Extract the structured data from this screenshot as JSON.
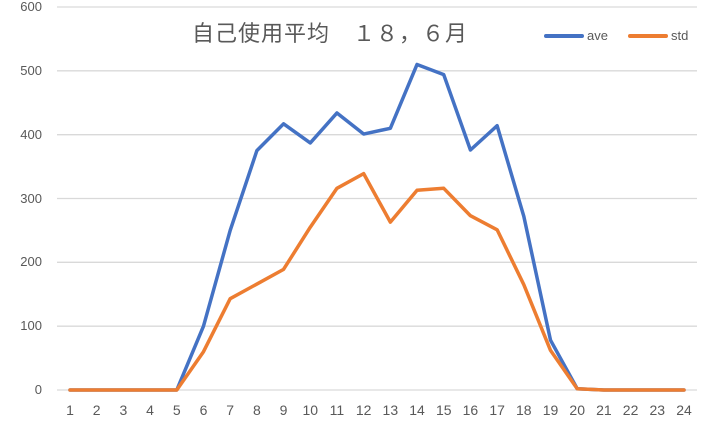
{
  "chart_data": {
    "type": "line",
    "title": "自己使用平均　１８，６月",
    "xlabel": "",
    "ylabel": "",
    "ylim": [
      0,
      600
    ],
    "yticks": [
      0,
      100,
      200,
      300,
      400,
      500,
      600
    ],
    "grid": true,
    "legend_position": "top-right",
    "categories": [
      1,
      2,
      3,
      4,
      5,
      6,
      7,
      8,
      9,
      10,
      11,
      12,
      13,
      14,
      15,
      16,
      17,
      18,
      19,
      20,
      21,
      22,
      23,
      24
    ],
    "series": [
      {
        "name": "ave",
        "color": "#4472C4",
        "values": [
          0,
          0,
          0,
          0,
          0,
          100,
          250,
          375,
          417,
          387,
          434,
          401,
          410,
          510,
          494,
          376,
          414,
          272,
          78,
          2,
          0,
          0,
          0,
          0
        ]
      },
      {
        "name": "std",
        "color": "#ED7D31",
        "values": [
          0,
          0,
          0,
          0,
          0,
          60,
          143,
          166,
          189,
          255,
          316,
          339,
          263,
          313,
          316,
          273,
          251,
          165,
          62,
          2,
          0,
          0,
          0,
          0
        ]
      }
    ]
  }
}
